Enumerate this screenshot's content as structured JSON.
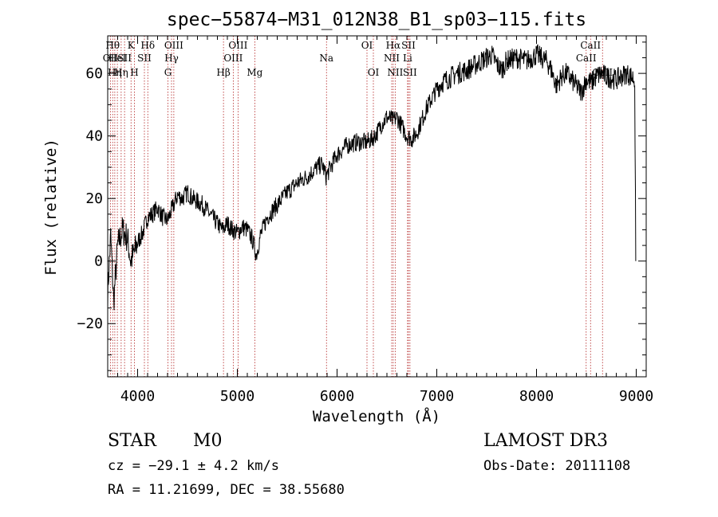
{
  "chart_data": {
    "type": "line",
    "title": "spec−55874−M31_012N38_B1_sp03−115.fits",
    "xlabel": "Wavelength (Å)",
    "ylabel": "Flux (relative)",
    "xlim": [
      3700,
      9100
    ],
    "ylim": [
      -37,
      72
    ],
    "x_ticks": [
      4000,
      5000,
      6000,
      7000,
      8000,
      9000
    ],
    "x_tick_labels": [
      "4000",
      "5000",
      "6000",
      "7000",
      "8000",
      "9000"
    ],
    "y_ticks": [
      -20,
      0,
      20,
      40,
      60
    ],
    "y_tick_labels": [
      "−20",
      "0",
      "20",
      "40",
      "60"
    ],
    "series": [
      {
        "name": "flux",
        "color": "#000000",
        "anchors": [
          [
            3700,
            -10
          ],
          [
            3730,
            8
          ],
          [
            3760,
            -13
          ],
          [
            3800,
            5
          ],
          [
            3850,
            10
          ],
          [
            3900,
            7
          ],
          [
            3930,
            0
          ],
          [
            3970,
            3
          ],
          [
            4000,
            6
          ],
          [
            4050,
            9
          ],
          [
            4100,
            14
          ],
          [
            4150,
            15
          ],
          [
            4200,
            17
          ],
          [
            4250,
            14
          ],
          [
            4300,
            13
          ],
          [
            4350,
            17
          ],
          [
            4400,
            21
          ],
          [
            4450,
            20
          ],
          [
            4500,
            22
          ],
          [
            4550,
            20
          ],
          [
            4600,
            19
          ],
          [
            4650,
            18
          ],
          [
            4700,
            16
          ],
          [
            4750,
            14
          ],
          [
            4800,
            12
          ],
          [
            4850,
            10
          ],
          [
            4900,
            12
          ],
          [
            4950,
            10
          ],
          [
            5000,
            9
          ],
          [
            5050,
            11
          ],
          [
            5100,
            10
          ],
          [
            5150,
            7
          ],
          [
            5190,
            2
          ],
          [
            5230,
            8
          ],
          [
            5300,
            14
          ],
          [
            5400,
            18
          ],
          [
            5500,
            22
          ],
          [
            5600,
            25
          ],
          [
            5700,
            27
          ],
          [
            5800,
            30
          ],
          [
            5850,
            31
          ],
          [
            5890,
            27
          ],
          [
            5950,
            31
          ],
          [
            6000,
            34
          ],
          [
            6100,
            37
          ],
          [
            6200,
            38
          ],
          [
            6300,
            38
          ],
          [
            6350,
            39
          ],
          [
            6400,
            41
          ],
          [
            6450,
            44
          ],
          [
            6500,
            46
          ],
          [
            6563,
            45
          ],
          [
            6600,
            46
          ],
          [
            6650,
            43
          ],
          [
            6700,
            40
          ],
          [
            6750,
            39
          ],
          [
            6800,
            41
          ],
          [
            6850,
            45
          ],
          [
            6900,
            49
          ],
          [
            6950,
            52
          ],
          [
            7000,
            55
          ],
          [
            7050,
            57
          ],
          [
            7100,
            58
          ],
          [
            7200,
            60
          ],
          [
            7300,
            61
          ],
          [
            7400,
            63
          ],
          [
            7500,
            65
          ],
          [
            7550,
            66
          ],
          [
            7600,
            63
          ],
          [
            7650,
            61
          ],
          [
            7700,
            64
          ],
          [
            7800,
            65
          ],
          [
            7900,
            64
          ],
          [
            8000,
            66
          ],
          [
            8100,
            64
          ],
          [
            8150,
            61
          ],
          [
            8200,
            56
          ],
          [
            8250,
            59
          ],
          [
            8300,
            60
          ],
          [
            8350,
            58
          ],
          [
            8400,
            56
          ],
          [
            8450,
            54
          ],
          [
            8500,
            58
          ],
          [
            8550,
            57
          ],
          [
            8600,
            59
          ],
          [
            8650,
            60
          ],
          [
            8700,
            59
          ],
          [
            8800,
            58
          ],
          [
            8900,
            60
          ],
          [
            8950,
            59
          ],
          [
            8985,
            58
          ],
          [
            8995,
            0
          ]
        ]
      }
    ],
    "lines": [
      {
        "wavelength": 3727,
        "label": "OII",
        "row": 1
      },
      {
        "wavelength": 3750,
        "label": "Hθ",
        "row": 0
      },
      {
        "wavelength": 3771,
        "label": "Hη",
        "row": 2
      },
      {
        "wavelength": 3797,
        "label": "HeI",
        "row": 1
      },
      {
        "wavelength": 3835,
        "label": "Hη",
        "row": 2
      },
      {
        "wavelength": 3869,
        "label": "SII",
        "row": 1
      },
      {
        "wavelength": 3934,
        "label": "K",
        "row": 0
      },
      {
        "wavelength": 3968,
        "label": "H",
        "row": 2
      },
      {
        "wavelength": 4068,
        "label": "SII",
        "row": 1
      },
      {
        "wavelength": 4102,
        "label": "Hδ",
        "row": 0
      },
      {
        "wavelength": 4304,
        "label": "G",
        "row": 2
      },
      {
        "wavelength": 4340,
        "label": "Hγ",
        "row": 1
      },
      {
        "wavelength": 4363,
        "label": "OIII",
        "row": 0
      },
      {
        "wavelength": 4861,
        "label": "Hβ",
        "row": 2
      },
      {
        "wavelength": 4959,
        "label": "OIII",
        "row": 1
      },
      {
        "wavelength": 5007,
        "label": "OIII",
        "row": 0
      },
      {
        "wavelength": 5175,
        "label": "Mg",
        "row": 2
      },
      {
        "wavelength": 5894,
        "label": "Na",
        "row": 1
      },
      {
        "wavelength": 6300,
        "label": "OI",
        "row": 0
      },
      {
        "wavelength": 6364,
        "label": "OI",
        "row": 2
      },
      {
        "wavelength": 6548,
        "label": "NII",
        "row": 1
      },
      {
        "wavelength": 6563,
        "label": "Hα",
        "row": 0
      },
      {
        "wavelength": 6583,
        "label": "NII",
        "row": 2
      },
      {
        "wavelength": 6707,
        "label": "Li",
        "row": 1
      },
      {
        "wavelength": 6716,
        "label": "SII",
        "row": 0
      },
      {
        "wavelength": 6731,
        "label": "SII",
        "row": 2
      },
      {
        "wavelength": 8498,
        "label": "CaII",
        "row": 1
      },
      {
        "wavelength": 8542,
        "label": "CaII",
        "row": 0
      },
      {
        "wavelength": 8662,
        "label": "CaII",
        "row": 2
      }
    ]
  },
  "info": {
    "class_label": "STAR",
    "subclass": "M0",
    "redshift_text": "cz = −29.1 ± 4.2 km/s",
    "coords_text": "RA =  11.21699, DEC =  38.55680",
    "survey": "LAMOST DR3",
    "obs_date": "Obs-Date: 20111108"
  }
}
